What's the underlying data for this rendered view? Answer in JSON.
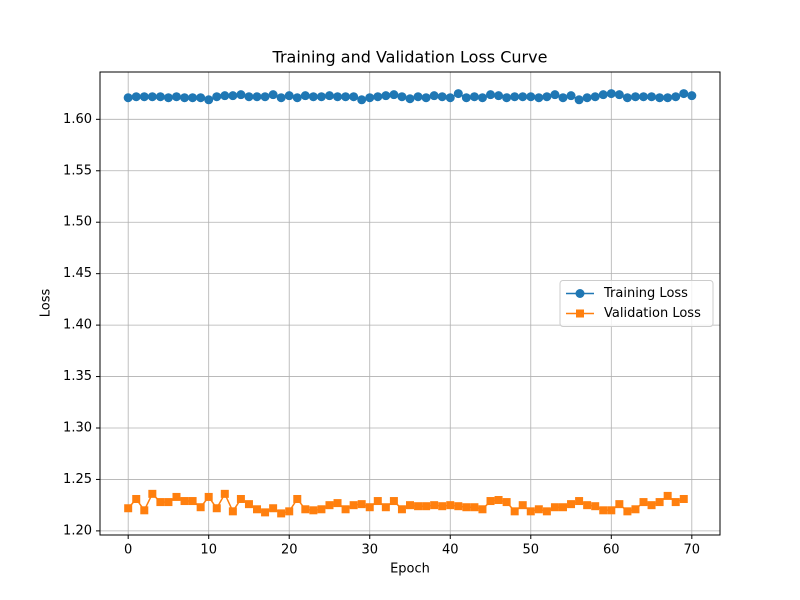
{
  "chart_data": {
    "type": "line",
    "title": "Training and Validation Loss Curve",
    "xlabel": "Epoch",
    "ylabel": "Loss",
    "xlim": [
      -3.5,
      73.5
    ],
    "ylim": [
      1.196,
      1.646
    ],
    "xticks": [
      0,
      10,
      20,
      30,
      40,
      50,
      60,
      70
    ],
    "yticks": [
      {
        "value": 1.2,
        "label": "1.20"
      },
      1.25,
      {
        "value": 1.3,
        "label": "1.30"
      },
      1.35,
      {
        "value": 1.4,
        "label": "1.40"
      },
      1.45,
      {
        "value": 1.5,
        "label": "1.50"
      },
      1.55,
      {
        "value": 1.6,
        "label": "1.60"
      }
    ],
    "grid": true,
    "legend": "center right",
    "series": [
      {
        "name": "Training Loss",
        "color": "#1f77b4",
        "marker": "circle",
        "x": [
          0,
          1,
          2,
          3,
          4,
          5,
          6,
          7,
          8,
          9,
          10,
          11,
          12,
          13,
          14,
          15,
          16,
          17,
          18,
          19,
          20,
          21,
          22,
          23,
          24,
          25,
          26,
          27,
          28,
          29,
          30,
          31,
          32,
          33,
          34,
          35,
          36,
          37,
          38,
          39,
          40,
          41,
          42,
          43,
          44,
          45,
          46,
          47,
          48,
          49,
          50,
          51,
          52,
          53,
          54,
          55,
          56,
          57,
          58,
          59,
          60,
          61,
          62,
          63,
          64,
          65,
          66,
          67,
          68,
          69,
          70
        ],
        "values": [
          1.621,
          1.622,
          1.622,
          1.622,
          1.622,
          1.621,
          1.622,
          1.621,
          1.621,
          1.621,
          1.619,
          1.622,
          1.623,
          1.623,
          1.624,
          1.622,
          1.622,
          1.622,
          1.624,
          1.621,
          1.623,
          1.621,
          1.623,
          1.622,
          1.622,
          1.623,
          1.622,
          1.622,
          1.622,
          1.619,
          1.621,
          1.622,
          1.623,
          1.624,
          1.622,
          1.62,
          1.622,
          1.621,
          1.623,
          1.622,
          1.621,
          1.625,
          1.621,
          1.622,
          1.621,
          1.624,
          1.623,
          1.621,
          1.622,
          1.622,
          1.622,
          1.621,
          1.622,
          1.624,
          1.621,
          1.623,
          1.619,
          1.621,
          1.622,
          1.624,
          1.625,
          1.624,
          1.621,
          1.622,
          1.622,
          1.622,
          1.621,
          1.621,
          1.622,
          1.625,
          1.623
        ]
      },
      {
        "name": "Validation Loss",
        "color": "#ff7f0e",
        "marker": "square",
        "x": [
          0,
          1,
          2,
          3,
          4,
          5,
          6,
          7,
          8,
          9,
          10,
          11,
          12,
          13,
          14,
          15,
          16,
          17,
          18,
          19,
          20,
          21,
          22,
          23,
          24,
          25,
          26,
          27,
          28,
          29,
          30,
          31,
          32,
          33,
          34,
          35,
          36,
          37,
          38,
          39,
          40,
          41,
          42,
          43,
          44,
          45,
          46,
          47,
          48,
          49,
          50,
          51,
          52,
          53,
          54,
          55,
          56,
          57,
          58,
          59,
          60,
          61,
          62,
          63,
          64,
          65,
          66,
          67,
          68,
          69
        ],
        "values": [
          1.222,
          1.231,
          1.22,
          1.236,
          1.228,
          1.228,
          1.233,
          1.229,
          1.229,
          1.223,
          1.233,
          1.222,
          1.236,
          1.219,
          1.231,
          1.226,
          1.221,
          1.218,
          1.222,
          1.217,
          1.219,
          1.231,
          1.221,
          1.22,
          1.221,
          1.225,
          1.227,
          1.221,
          1.225,
          1.226,
          1.223,
          1.229,
          1.223,
          1.229,
          1.221,
          1.225,
          1.224,
          1.224,
          1.225,
          1.224,
          1.225,
          1.224,
          1.223,
          1.223,
          1.221,
          1.229,
          1.23,
          1.228,
          1.219,
          1.225,
          1.219,
          1.221,
          1.219,
          1.223,
          1.223,
          1.226,
          1.229,
          1.225,
          1.224,
          1.22,
          1.22,
          1.226,
          1.219,
          1.221,
          1.228,
          1.225,
          1.228,
          1.234,
          1.228,
          1.231
        ]
      }
    ]
  }
}
